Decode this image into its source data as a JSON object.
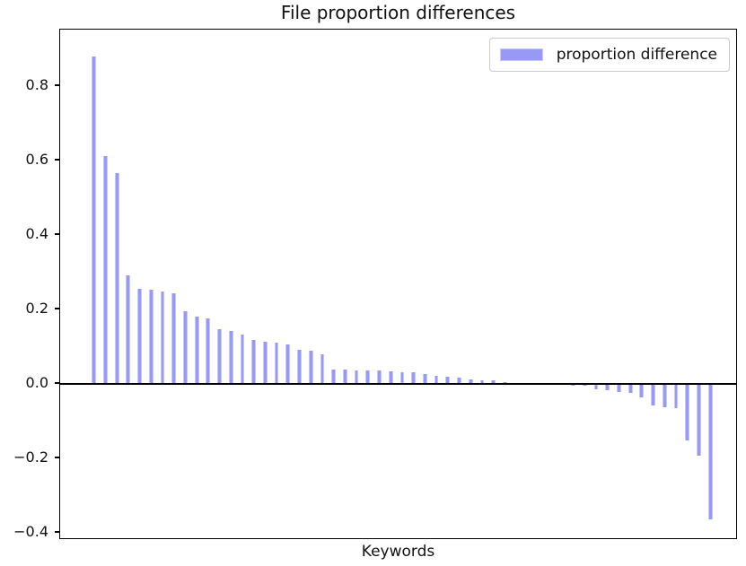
{
  "chart_data": {
    "type": "bar",
    "title": "File proportion differences",
    "xlabel": "Keywords",
    "ylabel": "",
    "legend": {
      "label": "proportion difference",
      "position": "upper right"
    },
    "bar_color": "#9898f6",
    "bar_edge_color": "#c8c8fb",
    "axis_color": "#000000",
    "grid": false,
    "x_tick_labels_shown": false,
    "ylim": [
      -0.4186,
      0.9513
    ],
    "yticks": [
      0.8,
      0.6,
      0.4,
      0.2,
      0.0,
      -0.2,
      -0.4
    ],
    "ytick_labels": [
      "0.8",
      "0.6",
      "0.4",
      "0.2",
      "0.0",
      "−0.2",
      "−0.4"
    ],
    "values": [
      0.88,
      0.612,
      0.567,
      0.292,
      0.255,
      0.252,
      0.249,
      0.243,
      0.196,
      0.182,
      0.177,
      0.146,
      0.142,
      0.133,
      0.118,
      0.114,
      0.111,
      0.107,
      0.093,
      0.09,
      0.079,
      0.04,
      0.038,
      0.037,
      0.037,
      0.036,
      0.035,
      0.032,
      0.031,
      0.028,
      0.022,
      0.019,
      0.016,
      0.013,
      0.011,
      0.009,
      0.006,
      0.002,
      0.001,
      0.0,
      0.0,
      0.0,
      -0.001,
      -0.002,
      -0.011,
      -0.013,
      -0.019,
      -0.021,
      -0.032,
      -0.054,
      -0.058,
      -0.061,
      -0.148,
      -0.19,
      -0.36
    ]
  }
}
